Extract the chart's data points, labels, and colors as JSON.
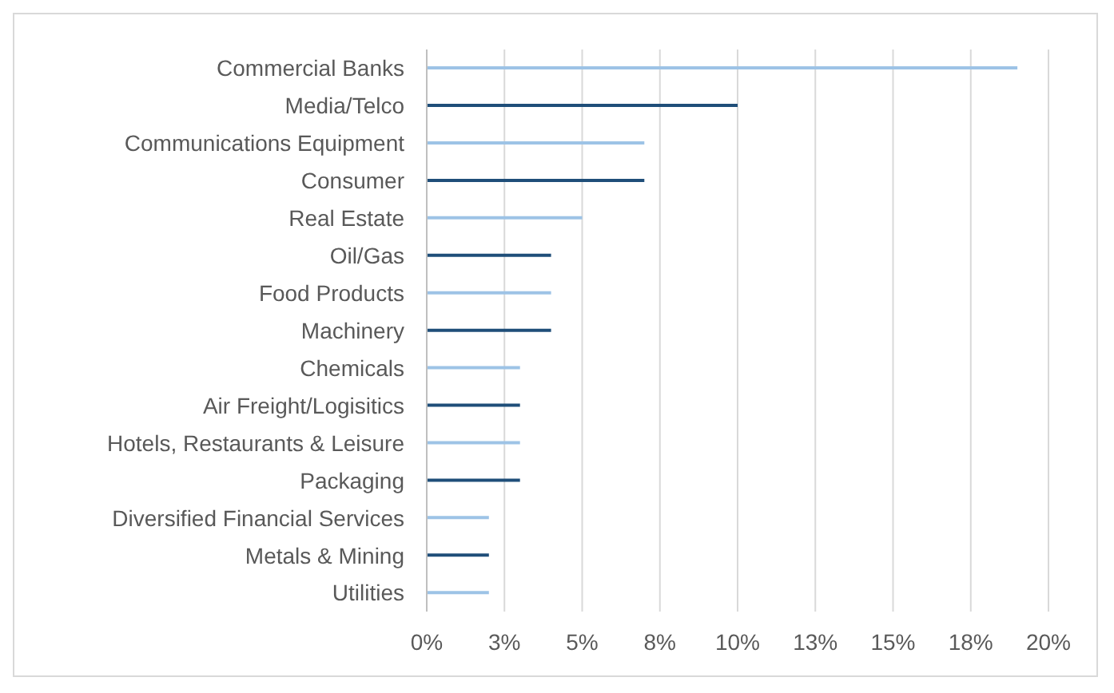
{
  "chart_data": {
    "type": "bar",
    "orientation": "horizontal",
    "categories": [
      "Commercial Banks",
      "Media/Telco",
      "Communications Equipment",
      "Consumer",
      "Real Estate",
      "Oil/Gas",
      "Food Products",
      "Machinery",
      "Chemicals",
      "Air Freight/Logisitics",
      "Hotels, Restaurants & Leisure",
      "Packaging",
      "Diversified Financial Services",
      "Metals & Mining",
      "Utilities"
    ],
    "values": [
      19,
      10,
      7,
      7,
      5,
      4,
      4,
      4,
      3,
      3,
      3,
      3,
      2,
      2,
      2
    ],
    "colors": [
      "#9dc3e6",
      "#1f4e79",
      "#9dc3e6",
      "#1f4e79",
      "#9dc3e6",
      "#1f4e79",
      "#9dc3e6",
      "#1f4e79",
      "#9dc3e6",
      "#1f4e79",
      "#9dc3e6",
      "#1f4e79",
      "#9dc3e6",
      "#1f4e79",
      "#9dc3e6"
    ],
    "xlim": [
      0,
      20
    ],
    "xticks": [
      {
        "value": 0,
        "label": "0%"
      },
      {
        "value": 2.5,
        "label": "3%"
      },
      {
        "value": 5,
        "label": "5%"
      },
      {
        "value": 7.5,
        "label": "8%"
      },
      {
        "value": 10,
        "label": "10%"
      },
      {
        "value": 12.5,
        "label": "13%"
      },
      {
        "value": 15,
        "label": "15%"
      },
      {
        "value": 17.5,
        "label": "18%"
      },
      {
        "value": 20,
        "label": "20%"
      }
    ],
    "grid": "x",
    "legend": false
  }
}
